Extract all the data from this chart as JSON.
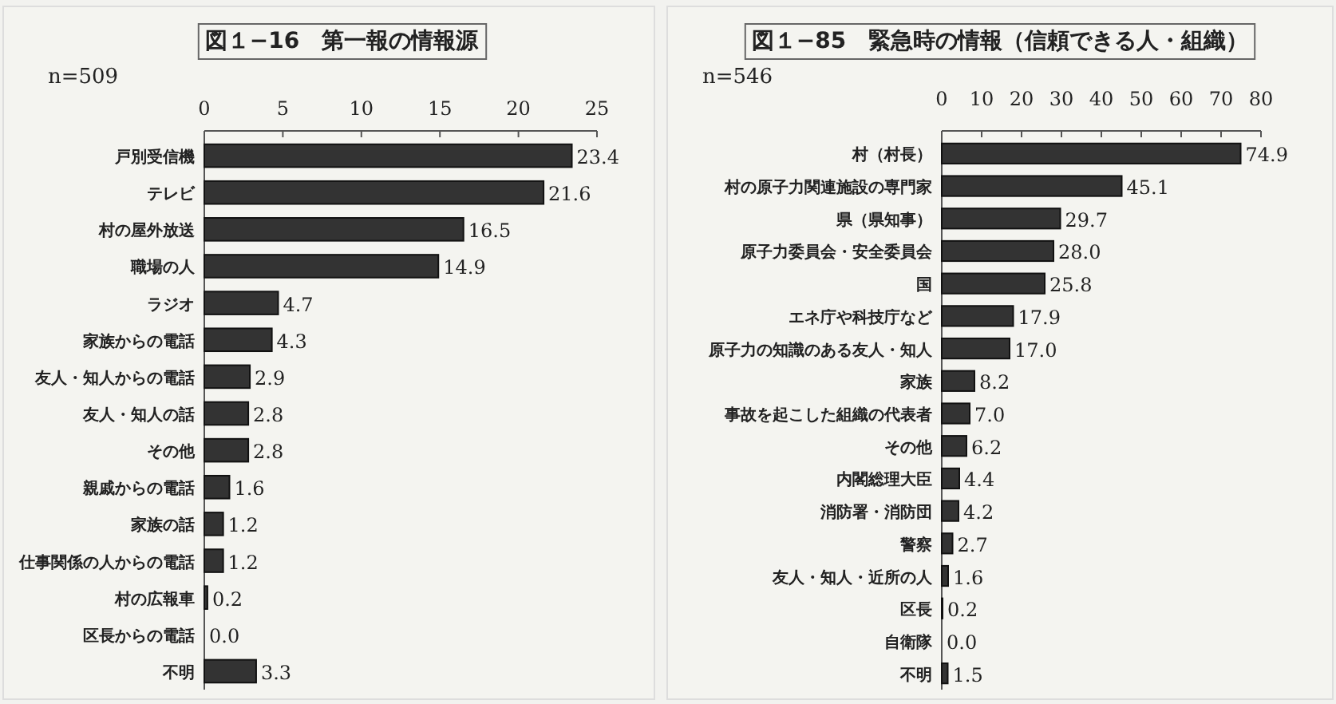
{
  "chart_data": [
    {
      "type": "bar",
      "orientation": "horizontal",
      "title": "図１−16　第一報の情報源",
      "subtitle": "n=509",
      "categories": [
        "戸別受信機",
        "テレビ",
        "村の屋外放送",
        "職場の人",
        "ラジオ",
        "家族からの電話",
        "友人・知人からの電話",
        "友人・知人の話",
        "その他",
        "親戚からの電話",
        "家族の話",
        "仕事関係の人からの電話",
        "村の広報車",
        "区長からの電話",
        "不明"
      ],
      "values": [
        23.4,
        21.6,
        16.5,
        14.9,
        4.7,
        4.3,
        2.9,
        2.8,
        2.8,
        1.6,
        1.2,
        1.2,
        0.2,
        0.0,
        3.3
      ],
      "value_labels": [
        "23.4",
        "21.6",
        "16.5",
        "14.9",
        "4.7",
        "4.3",
        "2.9",
        "2.8",
        "2.8",
        "1.6",
        "1.2",
        "1.2",
        "0.2",
        "0.0",
        "3.3"
      ],
      "color": "#333333",
      "xlim": [
        0,
        25
      ],
      "xticks": [
        0,
        5,
        10,
        15,
        20,
        25
      ]
    },
    {
      "type": "bar",
      "orientation": "horizontal",
      "title": "図１−85　緊急時の情報（信頼できる人・組織）",
      "subtitle": "n=546",
      "categories": [
        "村（村長）",
        "村の原子力関連施設の専門家",
        "県（県知事）",
        "原子力委員会・安全委員会",
        "国",
        "エネ庁や科技庁など",
        "原子力の知識のある友人・知人",
        "家族",
        "事故を起こした組織の代表者",
        "その他",
        "内閣総理大臣",
        "消防署・消防団",
        "警察",
        "友人・知人・近所の人",
        "区長",
        "自衛隊",
        "不明"
      ],
      "values": [
        74.9,
        45.1,
        29.7,
        28.0,
        25.8,
        17.9,
        17.0,
        8.2,
        7.0,
        6.2,
        4.4,
        4.2,
        2.7,
        1.6,
        0.2,
        0.0,
        1.5
      ],
      "value_labels": [
        "74.9",
        "45.1",
        "29.7",
        "28.0",
        "25.8",
        "17.9",
        "17.0",
        "8.2",
        "7.0",
        "6.2",
        "4.4",
        "4.2",
        "2.7",
        "1.6",
        "0.2",
        "0.0",
        "1.5"
      ],
      "color": "#333333",
      "xlim": [
        0,
        80
      ],
      "xticks": [
        0,
        10,
        20,
        30,
        40,
        50,
        60,
        70,
        80
      ]
    }
  ]
}
